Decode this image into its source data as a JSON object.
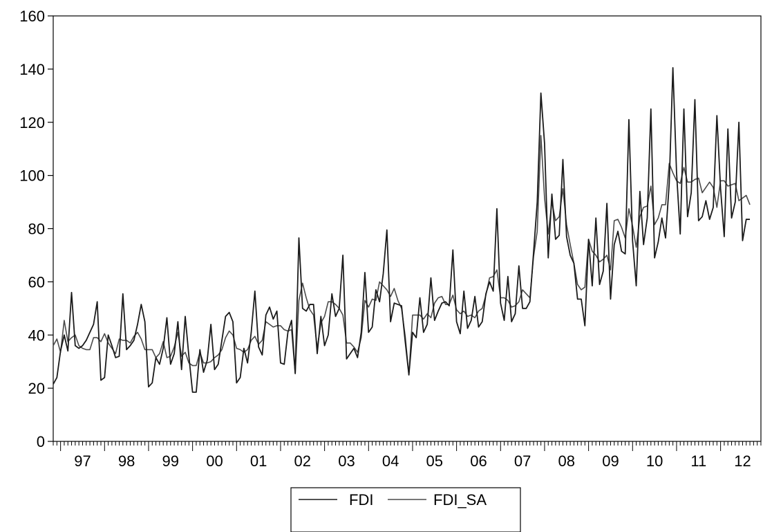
{
  "chart_data": {
    "type": "line",
    "title": "",
    "xlabel": "",
    "ylabel": "",
    "ylim": [
      0,
      160
    ],
    "yticks": [
      0,
      20,
      40,
      60,
      80,
      100,
      120,
      140,
      160
    ],
    "xlim": [
      1996.833,
      2012.917
    ],
    "xtick_labels": [
      "97",
      "98",
      "99",
      "00",
      "01",
      "02",
      "03",
      "04",
      "05",
      "06",
      "07",
      "08",
      "09",
      "10",
      "11",
      "12"
    ],
    "grid": false,
    "legend_position": "bottom-center",
    "series": [
      {
        "name": "FDI",
        "color": "#1a1a1a",
        "start": 1996.833,
        "step": 0.0833333,
        "values": [
          21.5,
          24,
          34,
          40,
          34,
          56,
          36,
          35,
          36,
          38,
          41,
          44,
          52.5,
          23,
          24,
          40,
          36,
          31.5,
          32,
          55.5,
          34.5,
          36,
          38,
          44,
          51.5,
          45,
          20.5,
          22,
          31.5,
          29,
          35,
          46.5,
          29,
          33,
          45,
          27,
          47,
          32,
          18.5,
          18.5,
          34.5,
          26,
          30.5,
          44,
          27,
          29,
          38,
          47,
          48.5,
          45,
          22,
          24,
          35,
          29.5,
          41,
          56.5,
          35.5,
          32.5,
          47.5,
          50.5,
          46,
          49,
          29.5,
          29,
          41,
          45.5,
          25.5,
          76.5,
          50,
          49,
          51.5,
          51.5,
          33,
          47,
          36,
          40,
          55.5,
          47,
          50,
          70,
          31,
          33,
          35,
          31.5,
          41,
          63.5,
          41,
          43,
          57,
          52.5,
          63,
          79.5,
          45,
          52,
          51.5,
          51,
          37.5,
          25,
          41,
          39,
          54,
          41,
          44,
          61.5,
          45.5,
          49,
          52,
          52.5,
          51,
          72,
          45,
          40.5,
          56.5,
          42.5,
          45.5,
          54.5,
          43,
          45,
          55.5,
          60,
          56.5,
          87.5,
          52,
          45.5,
          62,
          45,
          48,
          66,
          50,
          50,
          52.5,
          71,
          90,
          131,
          112,
          69,
          93,
          76,
          77.5,
          106,
          77,
          70,
          67,
          53.5,
          53.5,
          43.5,
          76,
          58.5,
          84,
          59,
          64,
          89.5,
          53.5,
          74,
          79,
          71.5,
          70.5,
          121,
          75.5,
          58.5,
          94,
          74,
          84,
          125,
          69,
          75,
          84,
          76.5,
          97,
          140.5,
          101,
          78,
          125,
          84.5,
          93.5,
          128.5,
          83,
          84.5,
          90.5,
          83.5,
          88,
          122.5,
          95,
          77,
          117.5,
          84,
          90,
          120,
          75.5,
          83.5,
          83.5
        ]
      },
      {
        "name": "FDI_SA",
        "color": "#4a4a4a",
        "start": 1996.833,
        "step": 0.0833333,
        "values": [
          36,
          38.5,
          33.5,
          45.5,
          37.5,
          39,
          40,
          36,
          35,
          34.5,
          34.5,
          39,
          39,
          37.5,
          40.5,
          37,
          35,
          33,
          38.5,
          38,
          38,
          37,
          39.5,
          41,
          38.5,
          34.5,
          34.5,
          34.5,
          31.5,
          33,
          37.5,
          31.5,
          32,
          35.5,
          41,
          32,
          33.5,
          29.5,
          28.5,
          28.5,
          33.5,
          29.5,
          29.5,
          30,
          31.5,
          32.5,
          34.5,
          39,
          41.5,
          40,
          35,
          34.5,
          33.5,
          34.5,
          38,
          39.5,
          36.5,
          38,
          45,
          44,
          43,
          43.5,
          43.5,
          42,
          41.5,
          42,
          25.5,
          53,
          59.5,
          54,
          49.5,
          47.5,
          35,
          44.5,
          47,
          52.5,
          52.5,
          51.5,
          50,
          47.5,
          37,
          37,
          35.5,
          33.5,
          39,
          53,
          50.5,
          53.5,
          53,
          60,
          58.5,
          57,
          54.5,
          57.5,
          53,
          50,
          39.5,
          25,
          47.5,
          47.5,
          47.5,
          46,
          48,
          46.5,
          52,
          54,
          54.5,
          51.5,
          51.5,
          55,
          49.5,
          48,
          49,
          47,
          47.5,
          46.5,
          49,
          50,
          55,
          61.5,
          62,
          64.5,
          54,
          54,
          53,
          50.5,
          51,
          52.5,
          57,
          55.5,
          54,
          69.5,
          79,
          115,
          91.5,
          78,
          90,
          83,
          84.5,
          95,
          81.5,
          74,
          67,
          59,
          57,
          58,
          76,
          71.5,
          70,
          67.5,
          68.5,
          70,
          64.5,
          83,
          83.5,
          80.5,
          76.5,
          87.5,
          81,
          73,
          84.5,
          88,
          88.5,
          96,
          81.5,
          84,
          89,
          89,
          104.5,
          101,
          98,
          97,
          103,
          97.5,
          97.5,
          98.5,
          99,
          93.5,
          95.5,
          97.5,
          95.5,
          88,
          98,
          98,
          96,
          96.5,
          97,
          90.5,
          91.5,
          92.5,
          89
        ]
      }
    ]
  },
  "legend": {
    "items": [
      {
        "label": "FDI",
        "color": "#1a1a1a"
      },
      {
        "label": "FDI_SA",
        "color": "#4a4a4a"
      }
    ]
  }
}
